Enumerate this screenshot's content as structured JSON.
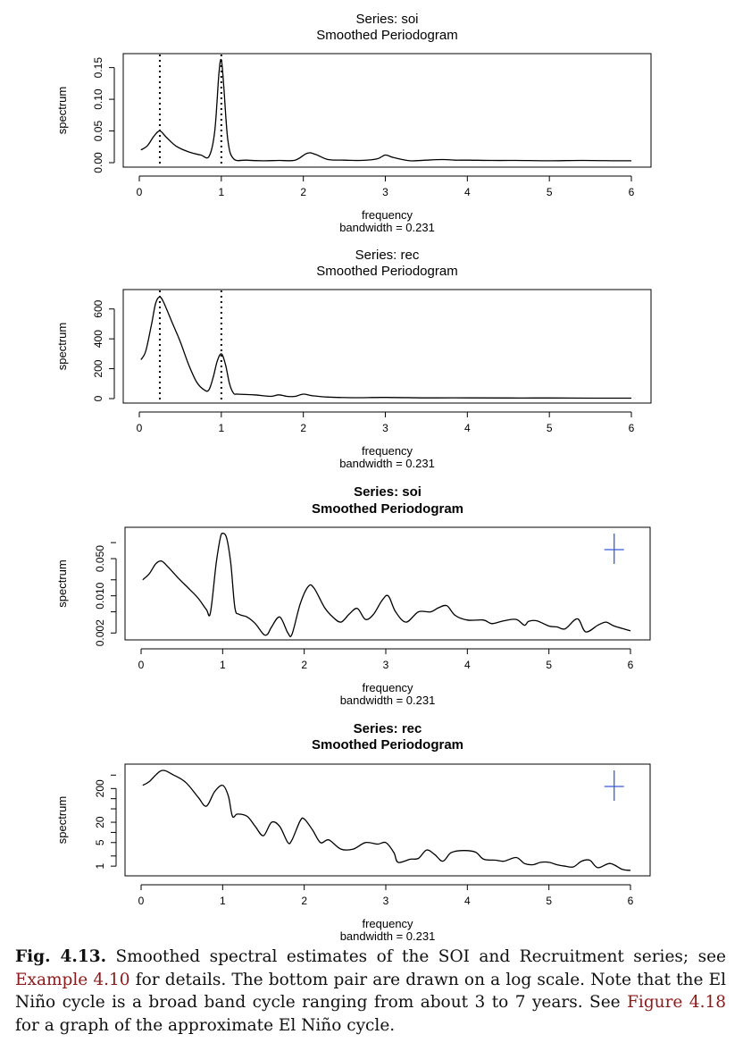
{
  "caption": {
    "label": "Fig. 4.13.",
    "part1": " Smoothed spectral estimates of the SOI and Recruitment series; see ",
    "ref1": "Example 4.10",
    "part2": " for details. The bottom pair are drawn on a log scale. Note that the El Niño cycle is a broad band cycle ranging from about 3 to 7 years. See ",
    "ref2": "Figure 4.18",
    "part3": " for a graph of the approximate El Niño cycle."
  },
  "chart_data": [
    {
      "type": "line",
      "title": "Series: soi",
      "subtitle": "Smoothed Periodogram",
      "xlabel": "frequency",
      "xsublabel": "bandwidth = 0.231",
      "ylabel": "spectrum",
      "log_y": false,
      "xlim": [
        0,
        6
      ],
      "ylim": [
        0,
        0.165
      ],
      "xticks": [
        "0",
        "1",
        "2",
        "3",
        "4",
        "5",
        "6"
      ],
      "yticks": [
        0,
        0.05,
        0.1,
        0.15
      ],
      "ytick_labels": [
        "0.00",
        "0.05",
        "0.10",
        "0.15"
      ],
      "vlines": [
        0.25,
        1.0
      ],
      "cross": false,
      "x": [
        0.02,
        0.1,
        0.18,
        0.25,
        0.33,
        0.45,
        0.6,
        0.75,
        0.85,
        0.92,
        0.97,
        1.0,
        1.03,
        1.08,
        1.15,
        1.3,
        1.5,
        1.7,
        1.9,
        2.05,
        2.15,
        2.3,
        2.5,
        2.7,
        2.9,
        3.0,
        3.1,
        3.3,
        3.5,
        3.7,
        3.85,
        4.0,
        4.3,
        4.6,
        5.0,
        5.4,
        5.8,
        6.0
      ],
      "values": [
        0.02,
        0.027,
        0.042,
        0.05,
        0.04,
        0.026,
        0.017,
        0.012,
        0.01,
        0.05,
        0.14,
        0.162,
        0.12,
        0.035,
        0.006,
        0.004,
        0.003,
        0.0035,
        0.004,
        0.015,
        0.013,
        0.005,
        0.004,
        0.0035,
        0.006,
        0.012,
        0.008,
        0.003,
        0.004,
        0.005,
        0.004,
        0.004,
        0.0035,
        0.0035,
        0.003,
        0.0035,
        0.003,
        0.003
      ]
    },
    {
      "type": "line",
      "title": "Series: rec",
      "subtitle": "Smoothed Periodogram",
      "xlabel": "frequency",
      "xsublabel": "bandwidth = 0.231",
      "ylabel": "spectrum",
      "log_y": false,
      "xlim": [
        0,
        6
      ],
      "ylim": [
        0,
        700
      ],
      "xticks": [
        "0",
        "1",
        "2",
        "3",
        "4",
        "5",
        "6"
      ],
      "yticks": [
        0,
        200,
        400,
        600
      ],
      "ytick_labels": [
        "0",
        "200",
        "400",
        "600"
      ],
      "vlines": [
        0.25,
        1.0
      ],
      "cross": false,
      "x": [
        0.02,
        0.08,
        0.15,
        0.2,
        0.25,
        0.3,
        0.4,
        0.5,
        0.6,
        0.7,
        0.8,
        0.85,
        0.9,
        0.95,
        1.0,
        1.05,
        1.1,
        1.15,
        1.2,
        1.4,
        1.6,
        1.7,
        1.8,
        1.9,
        2.0,
        2.1,
        2.3,
        2.6,
        3.0,
        3.5,
        4.0,
        4.5,
        5.0,
        5.5,
        6.0
      ],
      "values": [
        260,
        320,
        500,
        640,
        680,
        640,
        510,
        380,
        230,
        110,
        55,
        60,
        140,
        250,
        300,
        230,
        100,
        35,
        30,
        25,
        15,
        25,
        15,
        15,
        30,
        20,
        10,
        6,
        8,
        5,
        5,
        4,
        4,
        3,
        3
      ]
    },
    {
      "type": "line",
      "title": "Series: soi",
      "subtitle": "Smoothed Periodogram",
      "xlabel": "frequency",
      "xsublabel": "bandwidth = 0.231",
      "ylabel": "spectrum",
      "log_y": true,
      "xlim": [
        0,
        6
      ],
      "ylim": [
        0.0018,
        0.16
      ],
      "xticks": [
        "0",
        "1",
        "2",
        "3",
        "4",
        "5",
        "6"
      ],
      "yticks": [
        0.002,
        0.01,
        0.05
      ],
      "ytick_labels": [
        "0.002",
        "0.010",
        "0.050"
      ],
      "vlines": [],
      "cross": true,
      "x": [
        0.02,
        0.1,
        0.18,
        0.25,
        0.33,
        0.45,
        0.6,
        0.7,
        0.8,
        0.85,
        0.92,
        0.97,
        1.0,
        1.05,
        1.1,
        1.15,
        1.2,
        1.3,
        1.4,
        1.5,
        1.55,
        1.6,
        1.7,
        1.8,
        1.85,
        1.95,
        2.05,
        2.12,
        2.25,
        2.35,
        2.45,
        2.55,
        2.65,
        2.75,
        2.85,
        2.95,
        3.03,
        3.12,
        3.25,
        3.4,
        3.55,
        3.65,
        3.75,
        3.85,
        4.0,
        4.2,
        4.3,
        4.45,
        4.6,
        4.7,
        4.75,
        4.85,
        5.0,
        5.1,
        5.2,
        5.35,
        5.45,
        5.6,
        5.7,
        5.8,
        6.0
      ],
      "values": [
        0.02,
        0.026,
        0.04,
        0.045,
        0.035,
        0.022,
        0.013,
        0.009,
        0.0055,
        0.0048,
        0.04,
        0.12,
        0.15,
        0.12,
        0.04,
        0.006,
        0.0045,
        0.004,
        0.003,
        0.0019,
        0.0019,
        0.0026,
        0.004,
        0.002,
        0.0019,
        0.007,
        0.015,
        0.014,
        0.006,
        0.004,
        0.0032,
        0.0045,
        0.0058,
        0.0036,
        0.0045,
        0.008,
        0.01,
        0.005,
        0.0032,
        0.005,
        0.005,
        0.006,
        0.0065,
        0.0043,
        0.0035,
        0.0035,
        0.003,
        0.0034,
        0.0036,
        0.0028,
        0.0033,
        0.0034,
        0.0027,
        0.0026,
        0.0024,
        0.0037,
        0.0021,
        0.0028,
        0.0032,
        0.0027,
        0.0022
      ]
    },
    {
      "type": "line",
      "title": "Series: rec",
      "subtitle": "Smoothed Periodogram",
      "xlabel": "frequency",
      "xsublabel": "bandwidth = 0.231",
      "ylabel": "spectrum",
      "log_y": true,
      "xlim": [
        0,
        6
      ],
      "ylim": [
        0.7,
        780
      ],
      "xticks": [
        "0",
        "1",
        "2",
        "3",
        "4",
        "5",
        "6"
      ],
      "yticks": [
        1,
        5,
        20,
        200
      ],
      "ytick_labels": [
        "1",
        "5",
        "20",
        "200"
      ],
      "vlines": [],
      "cross": true,
      "x": [
        0.02,
        0.1,
        0.25,
        0.4,
        0.55,
        0.7,
        0.8,
        0.9,
        1.0,
        1.07,
        1.12,
        1.18,
        1.3,
        1.4,
        1.5,
        1.6,
        1.7,
        1.8,
        1.85,
        1.95,
        2.0,
        2.1,
        2.2,
        2.3,
        2.45,
        2.6,
        2.75,
        2.9,
        3.0,
        3.1,
        3.15,
        3.3,
        3.4,
        3.5,
        3.6,
        3.7,
        3.8,
        3.95,
        4.1,
        4.2,
        4.35,
        4.45,
        4.6,
        4.7,
        4.8,
        4.9,
        5.0,
        5.1,
        5.2,
        5.3,
        5.4,
        5.5,
        5.6,
        5.75,
        5.9,
        6.0
      ],
      "values": [
        250,
        320,
        680,
        500,
        300,
        110,
        60,
        160,
        250,
        120,
        30,
        35,
        30,
        15,
        8,
        20,
        15,
        5,
        6,
        22,
        25,
        12,
        5,
        6,
        3.2,
        3.2,
        5,
        4.5,
        5,
        2.5,
        1.3,
        1.6,
        1.7,
        3,
        2.2,
        1.4,
        2.5,
        2.9,
        2.6,
        1.6,
        1.5,
        1.4,
        1.8,
        1.2,
        1.1,
        1.3,
        1.3,
        1.1,
        1.0,
        0.95,
        1.4,
        1.5,
        0.9,
        1.2,
        0.8,
        0.75
      ]
    }
  ]
}
